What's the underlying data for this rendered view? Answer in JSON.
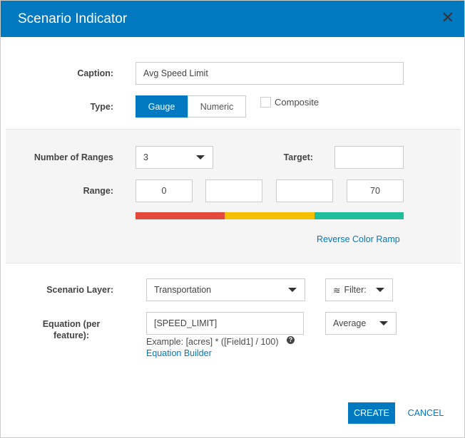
{
  "dialog": {
    "title": "Scenario Indicator",
    "close_icon": "close-icon"
  },
  "caption": {
    "label": "Caption:",
    "value": "Avg Speed Limit"
  },
  "type": {
    "label": "Type:",
    "options": [
      "Gauge",
      "Numeric"
    ],
    "selected": "Gauge",
    "composite_label": "Composite",
    "composite_checked": false
  },
  "ranges": {
    "count_label": "Number of Ranges",
    "count_value": "3",
    "target_label": "Target:",
    "target_value": "",
    "range_label": "Range:",
    "values": [
      "0",
      "",
      "",
      "70"
    ],
    "colors": [
      "#e34a3a",
      "#f5c000",
      "#1fbf9b"
    ],
    "reverse_link": "Reverse Color Ramp"
  },
  "layer": {
    "label": "Scenario Layer:",
    "value": "Transportation",
    "filter_label": "Filter:"
  },
  "equation": {
    "label": "Equation (per feature):",
    "value": "[SPEED_LIMIT]",
    "example": "Example: [acres] * ([Field1] / 100)",
    "builder_link": "Equation Builder",
    "aggregate": "Average"
  },
  "footer": {
    "create": "CREATE",
    "cancel": "CANCEL"
  },
  "colors": {
    "accent": "#0079c1"
  }
}
